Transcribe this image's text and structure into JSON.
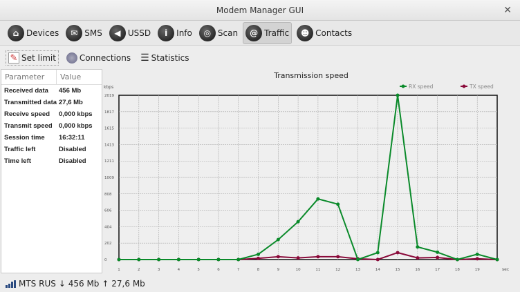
{
  "window": {
    "title": "Modem Manager GUI"
  },
  "toolbar": [
    {
      "label": "Devices",
      "icon": "house-icon",
      "glyph": "⌂"
    },
    {
      "label": "SMS",
      "icon": "sms-icon",
      "glyph": "✉"
    },
    {
      "label": "USSD",
      "icon": "ussd-icon",
      "glyph": "◀"
    },
    {
      "label": "Info",
      "icon": "info-icon",
      "glyph": "i"
    },
    {
      "label": "Scan",
      "icon": "globe-icon",
      "glyph": "◎"
    },
    {
      "label": "Traffic",
      "icon": "at-icon",
      "glyph": "@",
      "active": true
    },
    {
      "label": "Contacts",
      "icon": "contacts-icon",
      "glyph": "☻"
    }
  ],
  "subtoolbar": {
    "set_limit": "Set limit",
    "connections": "Connections",
    "statistics": "Statistics"
  },
  "table": {
    "headers": [
      "Parameter",
      "Value"
    ],
    "rows": [
      [
        "Received data",
        "456 Mb"
      ],
      [
        "Transmitted data",
        "27,6 Mb"
      ],
      [
        "Receive speed",
        "0,000 kbps"
      ],
      [
        "Transmit speed",
        "0,000 kbps"
      ],
      [
        "Session time",
        "16:32:11"
      ],
      [
        "Traffic left",
        "Disabled"
      ],
      [
        "Time left",
        "Disabled"
      ]
    ]
  },
  "status": {
    "operator": "MTS RUS",
    "down": "↓ 456 Mb",
    "up": "↑ 27,6 Mb"
  },
  "chart_data": {
    "type": "line",
    "title": "Transmission speed",
    "ylabel": "kbps",
    "xlabel": "sec",
    "ylim": [
      0,
      2019
    ],
    "yticks": [
      0,
      202,
      404,
      606,
      808,
      1009,
      1211,
      1413,
      1615,
      1817,
      2019
    ],
    "x": [
      1,
      2,
      3,
      4,
      5,
      6,
      7,
      8,
      9,
      10,
      11,
      12,
      13,
      14,
      15,
      16,
      17,
      18,
      19,
      20
    ],
    "xtick_labels": [
      "1",
      "2",
      "3",
      "4",
      "5",
      "6",
      "7",
      "8",
      "9",
      "10",
      "11",
      "12",
      "13",
      "14",
      "15",
      "16",
      "17",
      "18",
      "19"
    ],
    "grid": true,
    "legend": "top-right",
    "series": [
      {
        "name": "RX speed",
        "color": "#0a8a2a",
        "values": [
          0,
          0,
          0,
          0,
          0,
          0,
          0,
          65,
          245,
          465,
          745,
          680,
          0,
          85,
          2019,
          155,
          90,
          0,
          65,
          0
        ]
      },
      {
        "name": "TX speed",
        "color": "#8a0a3a",
        "values": [
          0,
          0,
          0,
          0,
          0,
          0,
          0,
          15,
          35,
          20,
          35,
          35,
          10,
          0,
          85,
          20,
          25,
          0,
          10,
          0
        ]
      }
    ]
  }
}
